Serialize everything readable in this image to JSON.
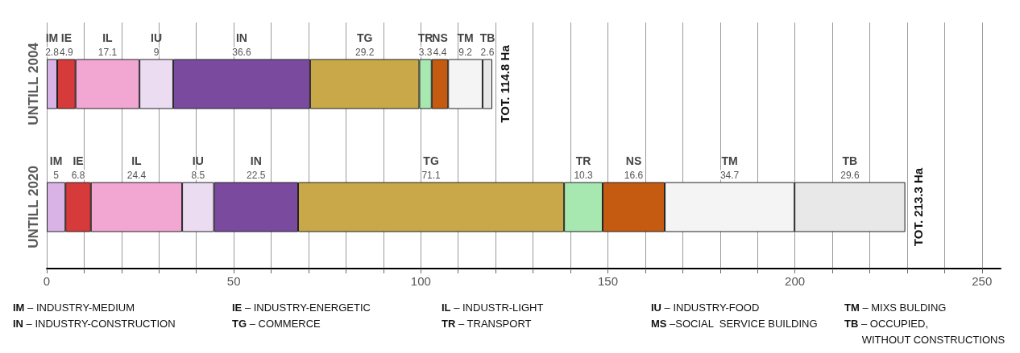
{
  "chart_data": {
    "type": "bar",
    "orientation": "horizontal",
    "stacked": true,
    "categories": [
      "UNTILL 2004",
      "UNTILL 2020"
    ],
    "series": [
      {
        "name": "IM",
        "color": "#d9b3e6",
        "values": [
          2.8,
          5
        ]
      },
      {
        "name": "IE",
        "color": "#d63a3a",
        "values": [
          4.9,
          6.8
        ]
      },
      {
        "name": "IL",
        "color": "#f2a7d3",
        "values": [
          17.1,
          24.4
        ]
      },
      {
        "name": "IU",
        "color": "#ecdcf2",
        "values": [
          9,
          8.5
        ]
      },
      {
        "name": "IN",
        "color": "#7a4a9e",
        "values": [
          36.6,
          22.5
        ]
      },
      {
        "name": "TG",
        "color": "#c9a84a",
        "values": [
          29.2,
          71.1
        ]
      },
      {
        "name": "TR",
        "color": "#a6e8b0",
        "values": [
          3.3,
          10.3
        ]
      },
      {
        "name": "NS",
        "color": "#c55a11",
        "values": [
          4.4,
          16.6
        ]
      },
      {
        "name": "TM",
        "color": "#f4f4f4",
        "values": [
          9.2,
          34.7
        ]
      },
      {
        "name": "TB",
        "color": "#e8e8e8",
        "values": [
          2.6,
          29.6
        ]
      }
    ],
    "data_labels": true,
    "xlim": [
      0,
      255
    ],
    "xticks": [
      0,
      {
        "value": 10,
        "label": null
      },
      {
        "value": 20,
        "label": null
      },
      {
        "value": 30,
        "label": null
      },
      {
        "value": 40,
        "label": null
      },
      50,
      {
        "value": 60,
        "label": null
      },
      {
        "value": 70,
        "label": null
      },
      {
        "value": 80,
        "label": null
      },
      {
        "value": 90,
        "label": null
      },
      100,
      {
        "value": 110,
        "label": null
      },
      {
        "value": 120,
        "label": null
      },
      {
        "value": 130,
        "label": null
      },
      {
        "value": 140,
        "label": null
      },
      150,
      {
        "value": 160,
        "label": null
      },
      {
        "value": 170,
        "label": null
      },
      {
        "value": 180,
        "label": null
      },
      {
        "value": 190,
        "label": null
      },
      200,
      {
        "value": 210,
        "label": null
      },
      {
        "value": 220,
        "label": null
      },
      {
        "value": 230,
        "label": null
      },
      {
        "value": 240,
        "label": null
      },
      250
    ],
    "grid": "x",
    "legend": false,
    "annotations": [
      "TOT. 114.8 Ha",
      "TOT. 213.3 Ha",
      "IM – INDUSTRY-MEDIUM",
      "IE – INDUSTRY-ENERGETIC",
      "IL – INDUSTR-LIGHT",
      "IU – INDUSTRY-FOOD",
      "TM – MIXS BULDING",
      "IN – INDUSTRY-CONSTRUCTION",
      "TG – COMMERCE",
      "TR – TRANSPORT",
      "MS –SOCIAL  SERVICE BUILDING",
      "TB – OCCUPIED,\nWITHOUT CONSTRUCTIONS"
    ]
  }
}
